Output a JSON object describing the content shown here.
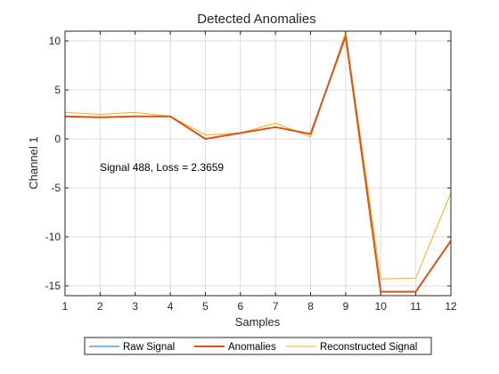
{
  "chart_data": {
    "type": "line",
    "title": "Detected Anomalies",
    "xlabel": "Samples",
    "ylabel": "Channel 1",
    "xlim": [
      1,
      12
    ],
    "ylim": [
      -16,
      11
    ],
    "xticks": [
      1,
      2,
      3,
      4,
      5,
      6,
      7,
      8,
      9,
      10,
      11,
      12
    ],
    "yticks": [
      10,
      5,
      0,
      -5,
      -10,
      -15
    ],
    "grid": true,
    "legend_position": "bottom-center",
    "annotation": "Signal 488, Loss = 2.3659",
    "x": [
      1,
      2,
      3,
      4,
      5,
      6,
      7,
      8,
      9,
      10,
      11,
      12
    ],
    "series": [
      {
        "name": "Raw Signal",
        "color": "#0072bd",
        "values": [
          2.3,
          2.2,
          2.3,
          2.3,
          0.0,
          0.6,
          1.2,
          0.5,
          10.5,
          -15.6,
          -15.6,
          -10.4
        ]
      },
      {
        "name": "Anomalies",
        "color": "#d95319",
        "values": [
          2.3,
          2.2,
          2.3,
          2.3,
          0.0,
          0.6,
          1.2,
          0.5,
          10.5,
          -15.6,
          -15.6,
          -10.4
        ]
      },
      {
        "name": "Reconstructed Signal",
        "color": "#edb120",
        "values": [
          2.7,
          2.5,
          2.7,
          2.3,
          0.4,
          0.6,
          1.6,
          0.2,
          10.9,
          -14.3,
          -14.2,
          -5.5
        ]
      }
    ]
  }
}
